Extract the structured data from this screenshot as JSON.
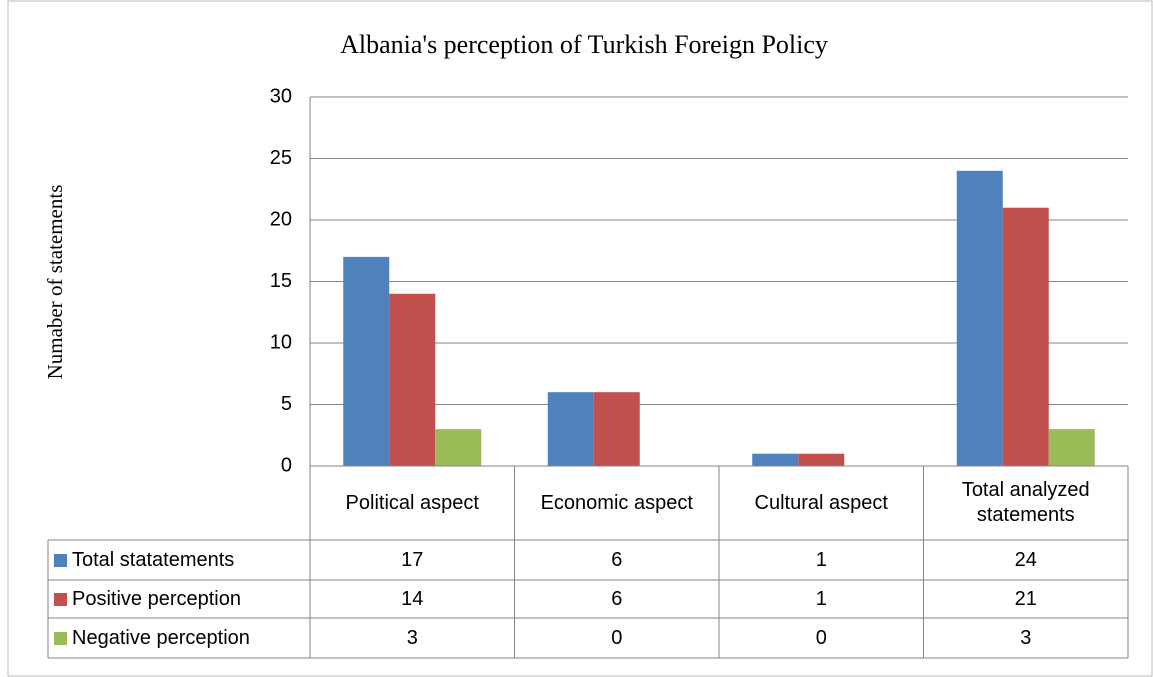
{
  "chart_data": {
    "type": "bar",
    "title": "Albania's perception of Turkish Foreign Policy",
    "y_label": "Numaber of statements",
    "categories": [
      "Political aspect",
      "Economic aspect",
      "Cultural aspect",
      "Total analyzed statements"
    ],
    "series": [
      {
        "name": "Total statatements",
        "color": "#4f81bd",
        "values": [
          17,
          6,
          1,
          24
        ]
      },
      {
        "name": "Positive perception",
        "color": "#c0504d",
        "values": [
          14,
          6,
          1,
          21
        ]
      },
      {
        "name": "Negative perception",
        "color": "#9bbb59",
        "values": [
          3,
          0,
          0,
          3
        ]
      }
    ],
    "ylim": [
      0,
      30
    ],
    "yticks": [
      0,
      5,
      10,
      15,
      20,
      25,
      30
    ],
    "grid": true,
    "data_table": true
  }
}
